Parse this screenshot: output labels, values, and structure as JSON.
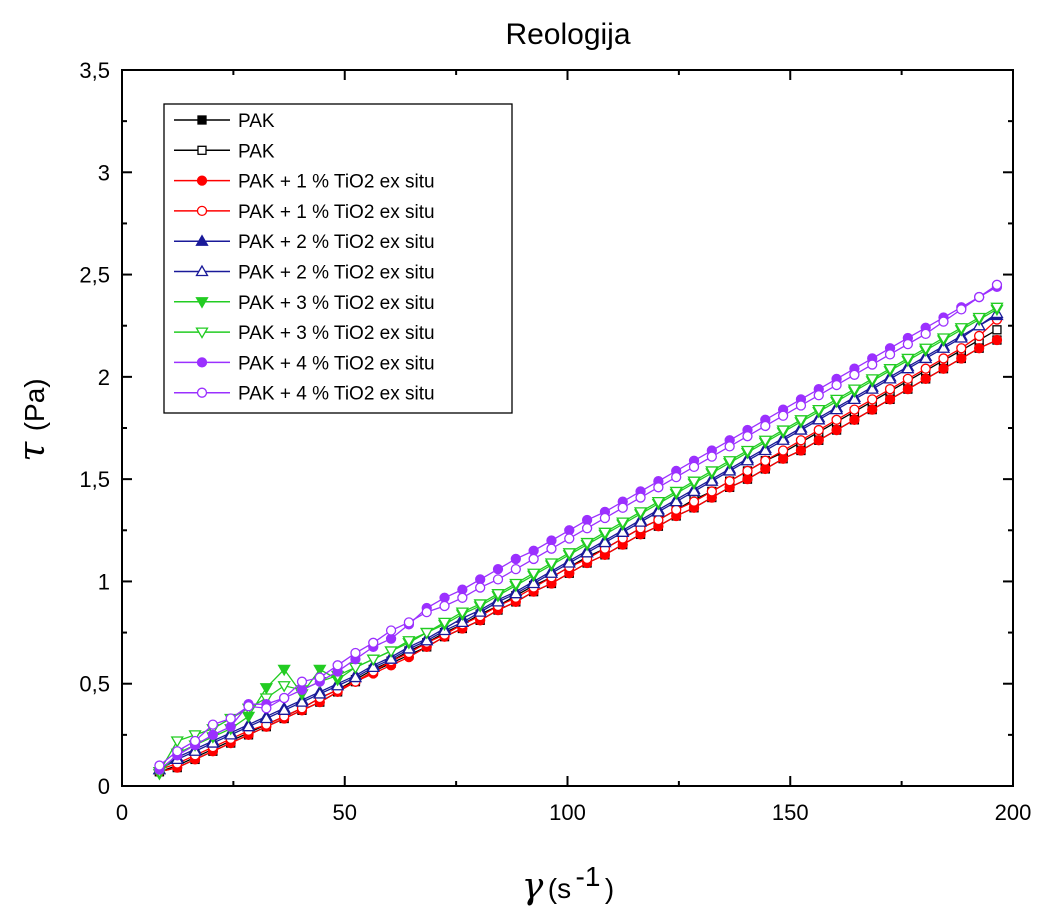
{
  "chart_data": {
    "type": "line",
    "title": "Reologija",
    "xlabel": {
      "symbol": "γ",
      "unit_open": "(s",
      "unit_exp": "-1",
      "unit_close": ")"
    },
    "ylabel": {
      "symbol": "τ",
      "unit": "(Pa)"
    },
    "xlim": [
      0,
      200
    ],
    "ylim": [
      0,
      3.5
    ],
    "xticks": [
      0,
      50,
      100,
      150,
      200
    ],
    "xtick_labels": [
      "0",
      "50",
      "100",
      "150",
      "200"
    ],
    "yticks": [
      0,
      0.5,
      1,
      1.5,
      2,
      2.5,
      3,
      3.5
    ],
    "ytick_labels": [
      "0",
      "0,5",
      "1",
      "1,5",
      "2",
      "2,5",
      "3",
      "3,5"
    ],
    "grid": false,
    "legend_position": "top-left",
    "x": [
      8.4,
      12.4,
      16.4,
      20.4,
      24.4,
      28.4,
      32.4,
      36.4,
      40.4,
      44.4,
      48.4,
      52.4,
      56.4,
      60.4,
      64.4,
      68.4,
      72.4,
      76.4,
      80.4,
      84.4,
      88.4,
      92.4,
      96.4,
      100.4,
      104.4,
      108.4,
      112.4,
      116.4,
      120.4,
      124.4,
      128.4,
      132.4,
      136.4,
      140.4,
      144.4,
      148.4,
      152.4,
      156.4,
      160.4,
      164.4,
      168.4,
      172.4,
      176.4,
      180.4,
      184.4,
      188.4,
      192.4,
      196.4
    ],
    "series": [
      {
        "name": "PAK",
        "color": "#000000",
        "marker": "square",
        "filled": true,
        "values": [
          0.07,
          0.09,
          0.13,
          0.17,
          0.21,
          0.25,
          0.29,
          0.33,
          0.37,
          0.41,
          0.46,
          0.51,
          0.56,
          0.6,
          0.64,
          0.68,
          0.73,
          0.77,
          0.81,
          0.86,
          0.9,
          0.95,
          0.99,
          1.04,
          1.09,
          1.13,
          1.18,
          1.23,
          1.27,
          1.32,
          1.36,
          1.41,
          1.46,
          1.5,
          1.55,
          1.6,
          1.64,
          1.69,
          1.74,
          1.79,
          1.84,
          1.89,
          1.94,
          1.99,
          2.04,
          2.09,
          2.14,
          2.18
        ]
      },
      {
        "name": "PAK",
        "color": "#000000",
        "marker": "square",
        "filled": false,
        "values": [
          0.07,
          0.1,
          0.14,
          0.18,
          0.22,
          0.26,
          0.3,
          0.34,
          0.38,
          0.43,
          0.47,
          0.52,
          0.57,
          0.61,
          0.66,
          0.7,
          0.75,
          0.79,
          0.84,
          0.88,
          0.93,
          0.98,
          1.02,
          1.07,
          1.12,
          1.16,
          1.21,
          1.26,
          1.3,
          1.35,
          1.4,
          1.44,
          1.49,
          1.54,
          1.59,
          1.63,
          1.68,
          1.73,
          1.78,
          1.83,
          1.88,
          1.93,
          1.98,
          2.03,
          2.08,
          2.13,
          2.18,
          2.23
        ]
      },
      {
        "name": "PAK + 1 % TiO2 ex situ",
        "color": "#ff0000",
        "marker": "circle",
        "filled": true,
        "values": [
          0.07,
          0.09,
          0.13,
          0.17,
          0.21,
          0.25,
          0.29,
          0.33,
          0.37,
          0.41,
          0.46,
          0.51,
          0.55,
          0.59,
          0.63,
          0.68,
          0.73,
          0.77,
          0.81,
          0.86,
          0.9,
          0.95,
          0.99,
          1.04,
          1.09,
          1.13,
          1.18,
          1.23,
          1.27,
          1.32,
          1.36,
          1.41,
          1.46,
          1.5,
          1.55,
          1.6,
          1.64,
          1.69,
          1.74,
          1.79,
          1.84,
          1.89,
          1.94,
          1.99,
          2.04,
          2.09,
          2.14,
          2.18
        ]
      },
      {
        "name": "PAK + 1 % TiO2 ex situ",
        "color": "#ff0000",
        "marker": "circle",
        "filled": false,
        "values": [
          0.08,
          0.11,
          0.15,
          0.19,
          0.23,
          0.27,
          0.3,
          0.34,
          0.38,
          0.43,
          0.47,
          0.51,
          0.56,
          0.61,
          0.65,
          0.7,
          0.74,
          0.79,
          0.83,
          0.88,
          0.92,
          0.97,
          1.02,
          1.07,
          1.11,
          1.16,
          1.21,
          1.26,
          1.3,
          1.35,
          1.39,
          1.44,
          1.49,
          1.54,
          1.59,
          1.64,
          1.69,
          1.74,
          1.79,
          1.84,
          1.89,
          1.94,
          1.99,
          2.04,
          2.09,
          2.14,
          2.2,
          2.28
        ]
      },
      {
        "name": "PAK + 2 % TiO2 ex situ",
        "color": "#1a1a99",
        "marker": "triangle-up",
        "filled": true,
        "values": [
          0.08,
          0.14,
          0.18,
          0.22,
          0.26,
          0.3,
          0.34,
          0.38,
          0.42,
          0.46,
          0.5,
          0.54,
          0.59,
          0.63,
          0.68,
          0.72,
          0.77,
          0.82,
          0.86,
          0.91,
          0.95,
          1.0,
          1.05,
          1.1,
          1.15,
          1.2,
          1.25,
          1.3,
          1.35,
          1.4,
          1.45,
          1.5,
          1.55,
          1.6,
          1.65,
          1.7,
          1.75,
          1.8,
          1.85,
          1.9,
          1.95,
          2.0,
          2.05,
          2.1,
          2.15,
          2.2,
          2.25,
          2.3
        ]
      },
      {
        "name": "PAK + 2 % TiO2 ex situ",
        "color": "#1a1a99",
        "marker": "triangle-up",
        "filled": false,
        "values": [
          0.08,
          0.13,
          0.17,
          0.21,
          0.25,
          0.29,
          0.33,
          0.37,
          0.41,
          0.45,
          0.49,
          0.53,
          0.58,
          0.62,
          0.67,
          0.71,
          0.76,
          0.8,
          0.85,
          0.9,
          0.94,
          0.99,
          1.04,
          1.09,
          1.14,
          1.19,
          1.24,
          1.29,
          1.34,
          1.39,
          1.44,
          1.49,
          1.54,
          1.59,
          1.64,
          1.69,
          1.74,
          1.79,
          1.84,
          1.89,
          1.94,
          1.99,
          2.04,
          2.09,
          2.14,
          2.19,
          2.25,
          2.31
        ]
      },
      {
        "name": "PAK + 3 % TiO2 ex situ",
        "color": "#22cc22",
        "marker": "triangle-down",
        "filled": true,
        "values": [
          0.06,
          0.16,
          0.2,
          0.24,
          0.28,
          0.34,
          0.48,
          0.57,
          0.45,
          0.57,
          0.52,
          0.58,
          0.62,
          0.66,
          0.7,
          0.75,
          0.79,
          0.84,
          0.88,
          0.93,
          0.98,
          1.03,
          1.08,
          1.13,
          1.18,
          1.23,
          1.28,
          1.33,
          1.38,
          1.43,
          1.48,
          1.53,
          1.58,
          1.63,
          1.68,
          1.73,
          1.78,
          1.83,
          1.88,
          1.93,
          1.98,
          2.03,
          2.08,
          2.13,
          2.18,
          2.23,
          2.28,
          2.33
        ]
      },
      {
        "name": "PAK + 3 % TiO2 ex situ",
        "color": "#22cc22",
        "marker": "triangle-down",
        "filled": false,
        "values": [
          0.07,
          0.22,
          0.25,
          0.28,
          0.33,
          0.38,
          0.43,
          0.49,
          0.47,
          0.51,
          0.54,
          0.58,
          0.62,
          0.66,
          0.71,
          0.75,
          0.8,
          0.85,
          0.89,
          0.94,
          0.99,
          1.04,
          1.09,
          1.14,
          1.19,
          1.24,
          1.29,
          1.34,
          1.39,
          1.44,
          1.49,
          1.54,
          1.59,
          1.64,
          1.69,
          1.74,
          1.79,
          1.84,
          1.89,
          1.94,
          1.99,
          2.04,
          2.09,
          2.14,
          2.19,
          2.24,
          2.29,
          2.34
        ]
      },
      {
        "name": "PAK + 4 % TiO2 ex situ",
        "color": "#9b30ff",
        "marker": "circle",
        "filled": true,
        "values": [
          0.08,
          0.15,
          0.2,
          0.25,
          0.29,
          0.4,
          0.4,
          0.43,
          0.47,
          0.51,
          0.56,
          0.62,
          0.68,
          0.72,
          0.79,
          0.87,
          0.92,
          0.96,
          1.01,
          1.06,
          1.11,
          1.15,
          1.2,
          1.25,
          1.3,
          1.34,
          1.39,
          1.44,
          1.49,
          1.54,
          1.59,
          1.64,
          1.69,
          1.74,
          1.79,
          1.84,
          1.89,
          1.94,
          1.99,
          2.04,
          2.09,
          2.14,
          2.19,
          2.24,
          2.29,
          2.34,
          2.39,
          2.44
        ]
      },
      {
        "name": "PAK + 4 % TiO2 ex situ",
        "color": "#9b30ff",
        "marker": "circle",
        "filled": false,
        "values": [
          0.1,
          0.17,
          0.22,
          0.3,
          0.33,
          0.39,
          0.38,
          0.43,
          0.51,
          0.53,
          0.59,
          0.65,
          0.7,
          0.76,
          0.8,
          0.85,
          0.88,
          0.92,
          0.97,
          1.01,
          1.06,
          1.11,
          1.16,
          1.21,
          1.26,
          1.31,
          1.36,
          1.41,
          1.46,
          1.51,
          1.56,
          1.61,
          1.66,
          1.71,
          1.76,
          1.81,
          1.86,
          1.91,
          1.96,
          2.01,
          2.06,
          2.11,
          2.16,
          2.21,
          2.27,
          2.33,
          2.39,
          2.45
        ]
      }
    ]
  }
}
